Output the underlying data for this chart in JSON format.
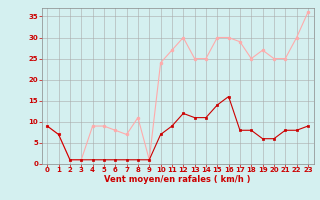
{
  "x": [
    0,
    1,
    2,
    3,
    4,
    5,
    6,
    7,
    8,
    9,
    10,
    11,
    12,
    13,
    14,
    15,
    16,
    17,
    18,
    19,
    20,
    21,
    22,
    23
  ],
  "wind_avg": [
    9,
    7,
    1,
    1,
    1,
    1,
    1,
    1,
    1,
    1,
    7,
    9,
    12,
    11,
    11,
    14,
    16,
    8,
    8,
    6,
    6,
    8,
    8,
    9
  ],
  "wind_gust": [
    9,
    7,
    1,
    1,
    9,
    9,
    8,
    7,
    11,
    1,
    24,
    27,
    30,
    25,
    25,
    30,
    30,
    29,
    25,
    27,
    25,
    25,
    30,
    36
  ],
  "avg_color": "#cc0000",
  "gust_color": "#ffaaaa",
  "bg_color": "#d4f0f0",
  "grid_color": "#aaaaaa",
  "xlabel": "Vent moyen/en rafales ( km/h )",
  "xlabel_color": "#cc0000",
  "ylabel_color": "#cc0000",
  "yticks": [
    0,
    5,
    10,
    15,
    20,
    25,
    30,
    35
  ],
  "xticks": [
    0,
    1,
    2,
    3,
    4,
    5,
    6,
    7,
    8,
    9,
    10,
    11,
    12,
    13,
    14,
    15,
    16,
    17,
    18,
    19,
    20,
    21,
    22,
    23
  ],
  "ylim": [
    0,
    37
  ],
  "xlim": [
    -0.5,
    23.5
  ],
  "tick_fontsize": 5.0,
  "xlabel_fontsize": 6.0
}
